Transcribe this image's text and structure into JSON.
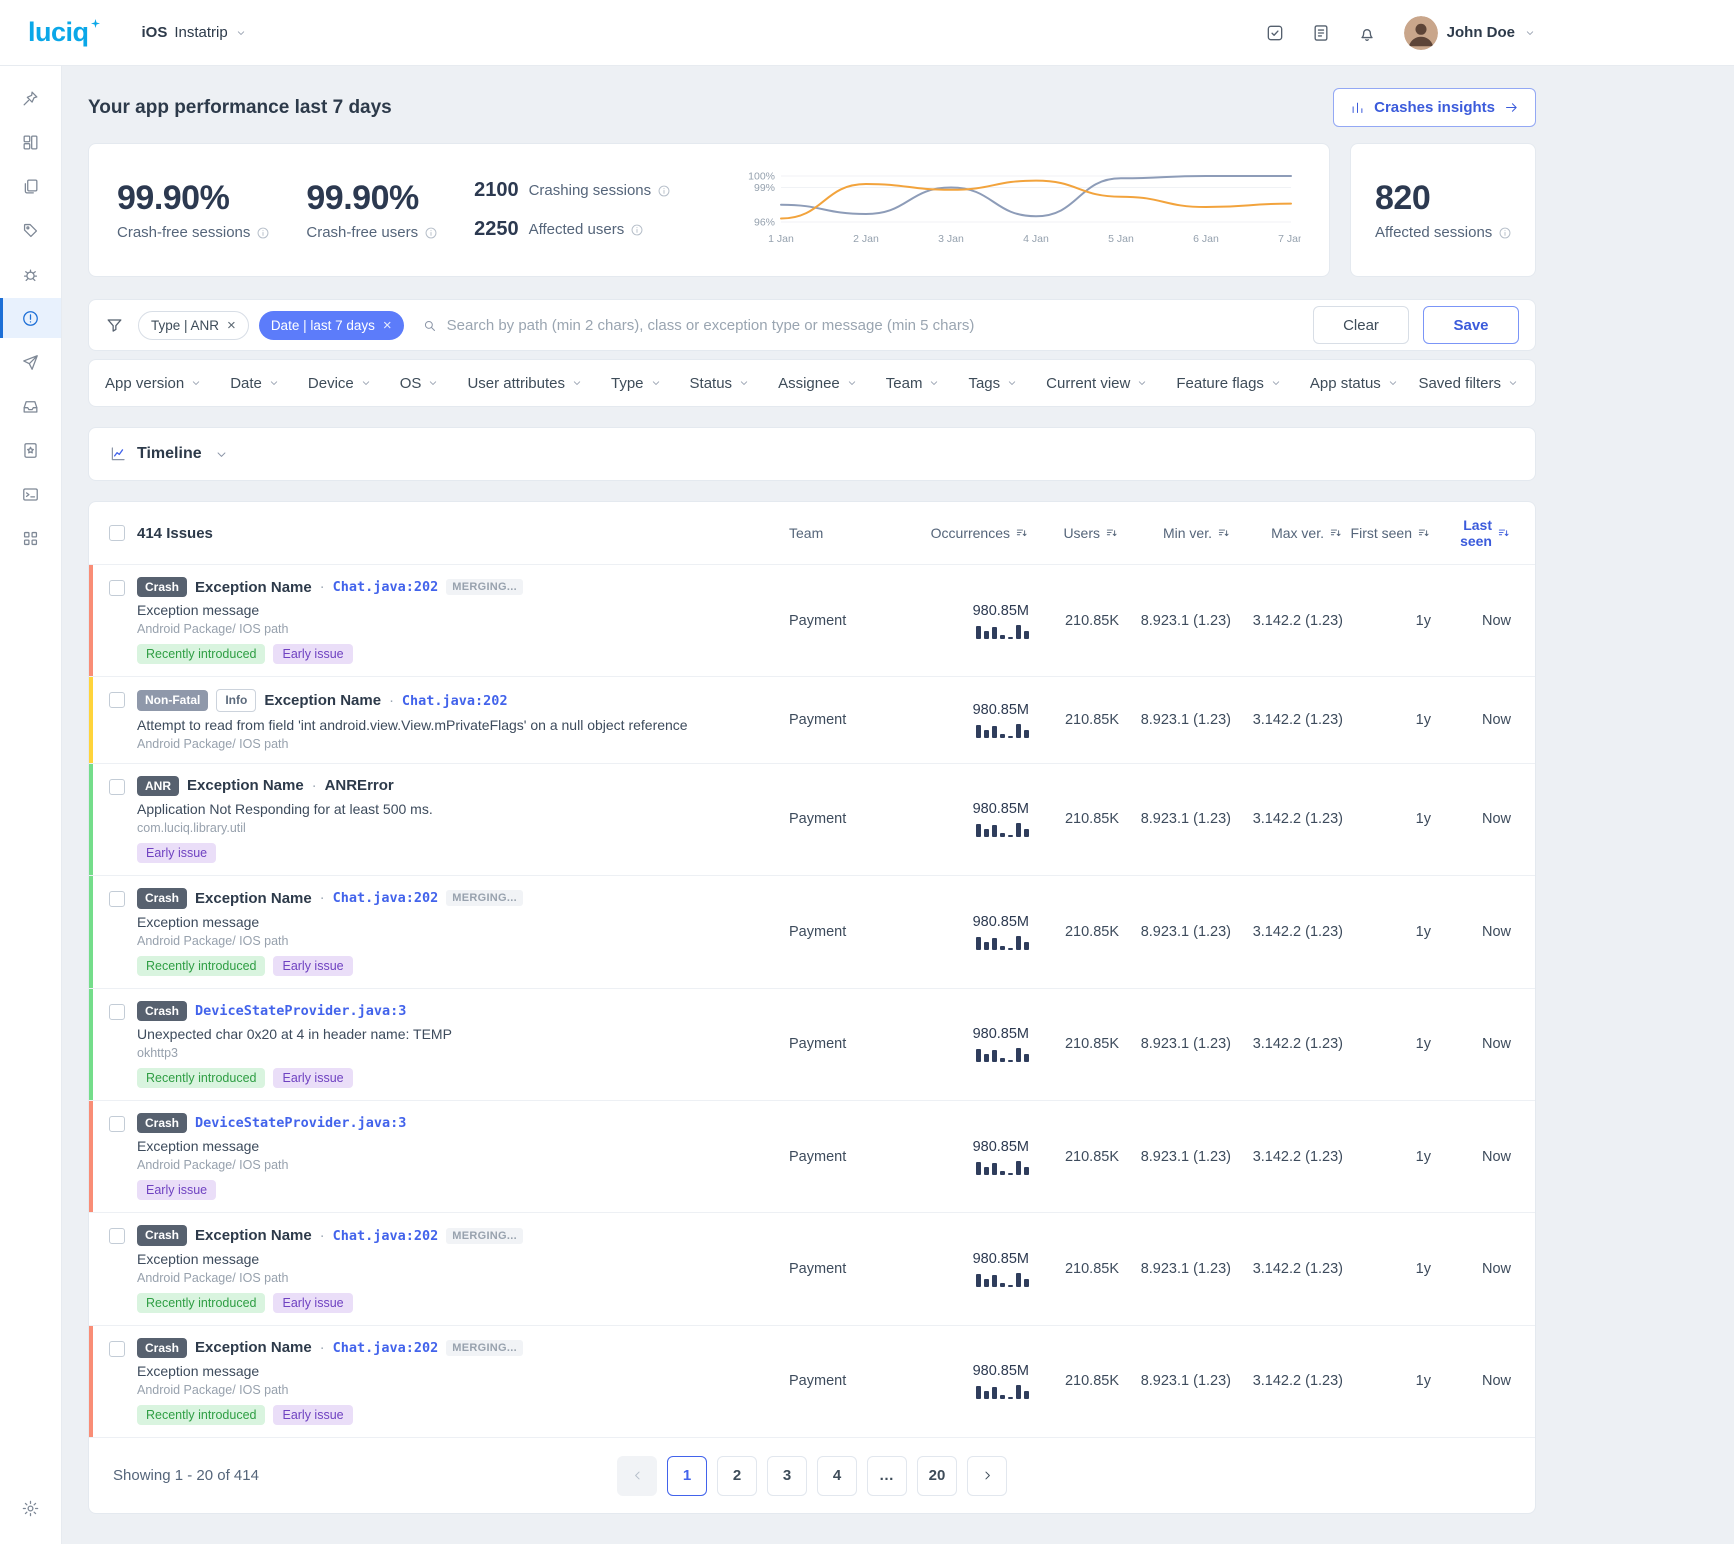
{
  "navbar": {
    "logo": "luciq",
    "platform": "iOS",
    "app_name": "Instatrip",
    "user_name": "John Doe",
    "icons": [
      {
        "name": "tasks"
      },
      {
        "name": "report"
      },
      {
        "name": "bell"
      }
    ]
  },
  "sidebar": {
    "items": [
      {
        "icon": "pin"
      },
      {
        "icon": "dashboard"
      },
      {
        "icon": "pages"
      },
      {
        "icon": "tag"
      },
      {
        "icon": "bug"
      },
      {
        "icon": "alert",
        "active": true
      },
      {
        "icon": "send"
      },
      {
        "icon": "inbox"
      },
      {
        "icon": "star-doc"
      },
      {
        "icon": "terminal"
      },
      {
        "icon": "grid"
      }
    ],
    "bottom": [
      {
        "icon": "gear"
      }
    ]
  },
  "performance": {
    "title": "Your app performance last 7 days",
    "insights_button": "Crashes insights",
    "crash_free_sessions": {
      "value": "99.90%",
      "label": "Crash-free sessions"
    },
    "crash_free_users": {
      "value": "99.90%",
      "label": "Crash-free users"
    },
    "crashing_sessions": {
      "value": "2100",
      "label": "Crashing sessions"
    },
    "affected_users": {
      "value": "2250",
      "label": "Affected users"
    },
    "affected_sessions": {
      "value": "820",
      "label": "Affected sessions"
    }
  },
  "chart_data": {
    "type": "line",
    "x": [
      "1 Jan",
      "2 Jan",
      "3 Jan",
      "4 Jan",
      "5 Jan",
      "6 Jan",
      "7 Jan"
    ],
    "series": [
      {
        "name": "crash-free sessions",
        "color": "#8d9cb8",
        "values": [
          97.5,
          96.7,
          99.0,
          96.5,
          99.8,
          100,
          100
        ]
      },
      {
        "name": "crash-free users",
        "color": "#f2a33c",
        "values": [
          96.3,
          99.3,
          98.8,
          99.6,
          98.2,
          97.3,
          97.6
        ]
      }
    ],
    "ylim": [
      96,
      100
    ],
    "yticks": [
      {
        "value": 100,
        "label": "100%"
      },
      {
        "value": 99,
        "label": "99%"
      },
      {
        "value": 96,
        "label": "96%"
      }
    ],
    "legend": "none",
    "grid": true
  },
  "filters": {
    "chips": [
      {
        "label": "Type | ANR",
        "style": "light"
      },
      {
        "label": "Date | last 7 days",
        "style": "blue"
      }
    ],
    "search_placeholder": "Search by path (min 2 chars), class or exception type or message (min 5 chars)",
    "clear_button": "Clear",
    "save_button": "Save",
    "dropdowns": [
      "App version",
      "Date",
      "Device",
      "OS",
      "User attributes",
      "Type",
      "Status",
      "Assignee",
      "Team",
      "Tags",
      "Current view",
      "Feature flags",
      "App status"
    ],
    "saved_filters": "Saved filters"
  },
  "timeline": {
    "label": "Timeline"
  },
  "table": {
    "title": "414 Issues",
    "columns": [
      {
        "label": "Team",
        "key": "team",
        "sort": false
      },
      {
        "label": "Occurrences",
        "key": "occ",
        "sort": true
      },
      {
        "label": "Users",
        "key": "users",
        "sort": true
      },
      {
        "label": "Min ver.",
        "key": "minv",
        "sort": true
      },
      {
        "label": "Max ver.",
        "key": "maxv",
        "sort": true
      },
      {
        "label": "First seen",
        "key": "first",
        "sort": true
      },
      {
        "label": "Last seen",
        "key": "last",
        "sort": true,
        "active": true
      }
    ],
    "sparkline": [
      13,
      8,
      12,
      4,
      2,
      14,
      8
    ],
    "rows": [
      {
        "accent": "#f98d76",
        "badges": [
          {
            "label": "Crash",
            "style": "dark"
          }
        ],
        "title": "Exception Name",
        "sep": "·",
        "code": "Chat.java:202",
        "merging": "MERGING...",
        "message": "Exception message",
        "path": "Android Package/ IOS path",
        "tags": [
          {
            "label": "Recently introduced",
            "style": "green"
          },
          {
            "label": "Early issue",
            "style": "purple"
          }
        ],
        "team": "Payment",
        "occurrences": "980.85M",
        "users": "210.85K",
        "min_ver": "8.923.1 (1.23)",
        "max_ver": "3.142.2 (1.23)",
        "first_seen": "1y",
        "last_seen": "Now"
      },
      {
        "accent": "#ffd43b",
        "badges": [
          {
            "label": "Non-Fatal",
            "style": "gray"
          },
          {
            "label": "Info",
            "style": "outline"
          }
        ],
        "title": "Exception Name",
        "sep": "·",
        "code": "Chat.java:202",
        "message": "Attempt to read from field 'int android.view.View.mPrivateFlags' on a null object reference",
        "path": "Android Package/ IOS path",
        "tags": [],
        "team": "Payment",
        "occurrences": "980.85M",
        "users": "210.85K",
        "min_ver": "8.923.1 (1.23)",
        "max_ver": "3.142.2 (1.23)",
        "first_seen": "1y",
        "last_seen": "Now"
      },
      {
        "accent": "#74dd8a",
        "badges": [
          {
            "label": "ANR",
            "style": "dark"
          }
        ],
        "title": "Exception Name",
        "sep": "·",
        "bold_code": "ANRError",
        "message": "Application Not Responding for at least 500 ms.",
        "path": "com.luciq.library.util",
        "tags": [
          {
            "label": "Early issue",
            "style": "purple"
          }
        ],
        "team": "Payment",
        "occurrences": "980.85M",
        "users": "210.85K",
        "min_ver": "8.923.1 (1.23)",
        "max_ver": "3.142.2 (1.23)",
        "first_seen": "1y",
        "last_seen": "Now"
      },
      {
        "accent": "#74dd8a",
        "badges": [
          {
            "label": "Crash",
            "style": "dark"
          }
        ],
        "title": "Exception Name",
        "sep": "·",
        "code": "Chat.java:202",
        "merging": "MERGING...",
        "message": "Exception message",
        "path": "Android Package/ IOS path",
        "tags": [
          {
            "label": "Recently introduced",
            "style": "green"
          },
          {
            "label": "Early issue",
            "style": "purple"
          }
        ],
        "team": "Payment",
        "occurrences": "980.85M",
        "users": "210.85K",
        "min_ver": "8.923.1 (1.23)",
        "max_ver": "3.142.2 (1.23)",
        "first_seen": "1y",
        "last_seen": "Now"
      },
      {
        "accent": "#74dd8a",
        "badges": [
          {
            "label": "Crash",
            "style": "dark"
          }
        ],
        "code": "DeviceStateProvider.java:3",
        "message": "Unexpected char 0x20 at 4 in header name: TEMP",
        "path": "okhttp3",
        "tags": [
          {
            "label": "Recently introduced",
            "style": "green"
          },
          {
            "label": "Early issue",
            "style": "purple"
          }
        ],
        "team": "Payment",
        "occurrences": "980.85M",
        "users": "210.85K",
        "min_ver": "8.923.1 (1.23)",
        "max_ver": "3.142.2 (1.23)",
        "first_seen": "1y",
        "last_seen": "Now"
      },
      {
        "accent": "#f98d76",
        "badges": [
          {
            "label": "Crash",
            "style": "dark"
          }
        ],
        "code": "DeviceStateProvider.java:3",
        "message": "Exception message",
        "path": "Android Package/ IOS path",
        "tags": [
          {
            "label": "Early issue",
            "style": "purple"
          }
        ],
        "team": "Payment",
        "occurrences": "980.85M",
        "users": "210.85K",
        "min_ver": "8.923.1 (1.23)",
        "max_ver": "3.142.2 (1.23)",
        "first_seen": "1y",
        "last_seen": "Now"
      },
      {
        "accent": "",
        "badges": [
          {
            "label": "Crash",
            "style": "dark"
          }
        ],
        "title": "Exception Name",
        "sep": "·",
        "code": "Chat.java:202",
        "merging": "MERGING...",
        "message": "Exception message",
        "path": "Android Package/ IOS path",
        "tags": [
          {
            "label": "Recently introduced",
            "style": "green"
          },
          {
            "label": "Early issue",
            "style": "purple"
          }
        ],
        "team": "Payment",
        "occurrences": "980.85M",
        "users": "210.85K",
        "min_ver": "8.923.1 (1.23)",
        "max_ver": "3.142.2 (1.23)",
        "first_seen": "1y",
        "last_seen": "Now"
      },
      {
        "accent": "#f98d76",
        "badges": [
          {
            "label": "Crash",
            "style": "dark"
          }
        ],
        "title": "Exception Name",
        "sep": "·",
        "code": "Chat.java:202",
        "merging": "MERGING...",
        "message": "Exception message",
        "path": "Android Package/ IOS path",
        "tags": [
          {
            "label": "Recently introduced",
            "style": "green"
          },
          {
            "label": "Early issue",
            "style": "purple"
          }
        ],
        "team": "Payment",
        "occurrences": "980.85M",
        "users": "210.85K",
        "min_ver": "8.923.1 (1.23)",
        "max_ver": "3.142.2 (1.23)",
        "first_seen": "1y",
        "last_seen": "Now"
      }
    ]
  },
  "pagination": {
    "showing": "Showing 1 - 20 of 414",
    "pages": [
      "1",
      "2",
      "3",
      "4",
      "…",
      "20"
    ],
    "active_page": "1"
  }
}
